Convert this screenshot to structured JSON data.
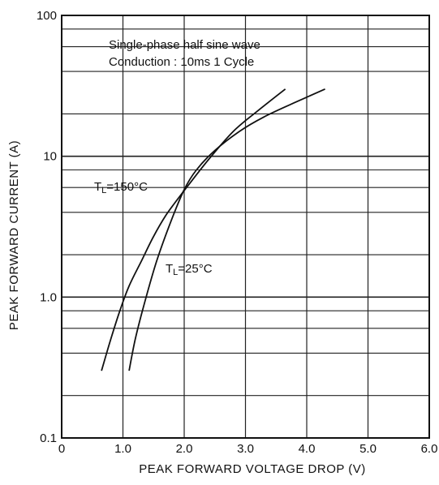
{
  "chart_data": {
    "type": "line",
    "xlabel": "PEAK FORWARD VOLTAGE DROP (V)",
    "ylabel": "PEAK FORWARD CURRENT (A)",
    "xlim": [
      0,
      6.0
    ],
    "ylim": [
      0.1,
      100
    ],
    "y_scale": "log",
    "grid": true,
    "x_tick_labels": [
      "0",
      "1.0",
      "2.0",
      "3.0",
      "4.0",
      "5.0",
      "6.0"
    ],
    "y_tick_labels": [
      "0.1",
      "1.0",
      "10",
      "100"
    ],
    "annotations": [
      "Single-phase half sine wave",
      "Conduction : 10ms 1 Cycle"
    ],
    "series": [
      {
        "name": "TL=150°C",
        "label_main": "T",
        "label_sub": "L",
        "label_rest": "=150°C",
        "x": [
          0.65,
          0.8,
          0.95,
          1.1,
          1.3,
          1.5,
          1.7,
          1.9,
          2.1,
          2.4,
          2.8,
          3.2,
          3.65
        ],
        "y": [
          0.3,
          0.5,
          0.8,
          1.2,
          1.8,
          2.7,
          3.8,
          5.0,
          6.5,
          9.5,
          15,
          21,
          30
        ]
      },
      {
        "name": "TL=25°C",
        "label_main": "T",
        "label_sub": "L",
        "label_rest": "=25°C",
        "x": [
          1.1,
          1.2,
          1.35,
          1.55,
          1.8,
          2.0,
          2.2,
          2.5,
          2.9,
          3.3,
          3.8,
          4.3
        ],
        "y": [
          0.3,
          0.5,
          0.9,
          1.8,
          3.6,
          5.8,
          8.0,
          11,
          15,
          19,
          24,
          30
        ]
      }
    ]
  }
}
